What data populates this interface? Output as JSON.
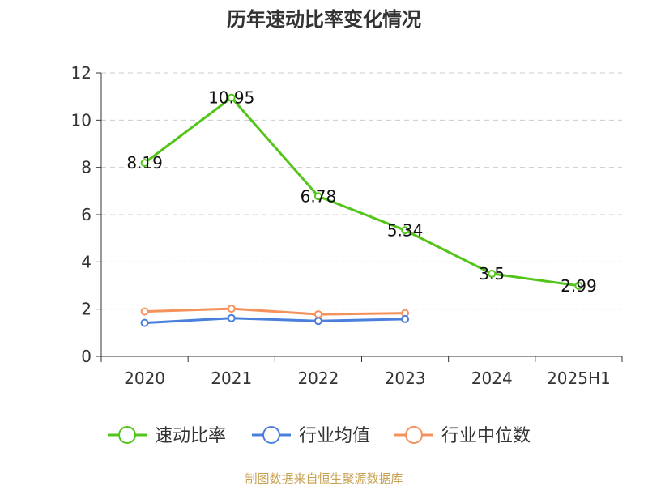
{
  "chart_data": {
    "type": "line",
    "title": "历年速动比率变化情况",
    "categories": [
      "2020",
      "2021",
      "2022",
      "2023",
      "2024",
      "2025H1"
    ],
    "ylim": [
      0,
      12
    ],
    "yticks": [
      0,
      2,
      4,
      6,
      8,
      10,
      12
    ],
    "grid": "horizontal-dashed",
    "legend_position": "bottom",
    "series": [
      {
        "name": "速动比率",
        "color": "#52c41a",
        "values": [
          8.19,
          10.95,
          6.78,
          5.34,
          3.5,
          2.99
        ],
        "labels": [
          "8.19",
          "10.95",
          "6.78",
          "5.34",
          "3.5",
          "2.99"
        ]
      },
      {
        "name": "行业均值",
        "color": "#4a7fdc",
        "values": [
          1.42,
          1.62,
          1.5,
          1.58,
          null,
          null
        ]
      },
      {
        "name": "行业中位数",
        "color": "#f5915a",
        "values": [
          1.9,
          2.02,
          1.78,
          1.83,
          null,
          null
        ]
      }
    ]
  },
  "footer": {
    "source": "制图数据来自恒生聚源数据库"
  }
}
